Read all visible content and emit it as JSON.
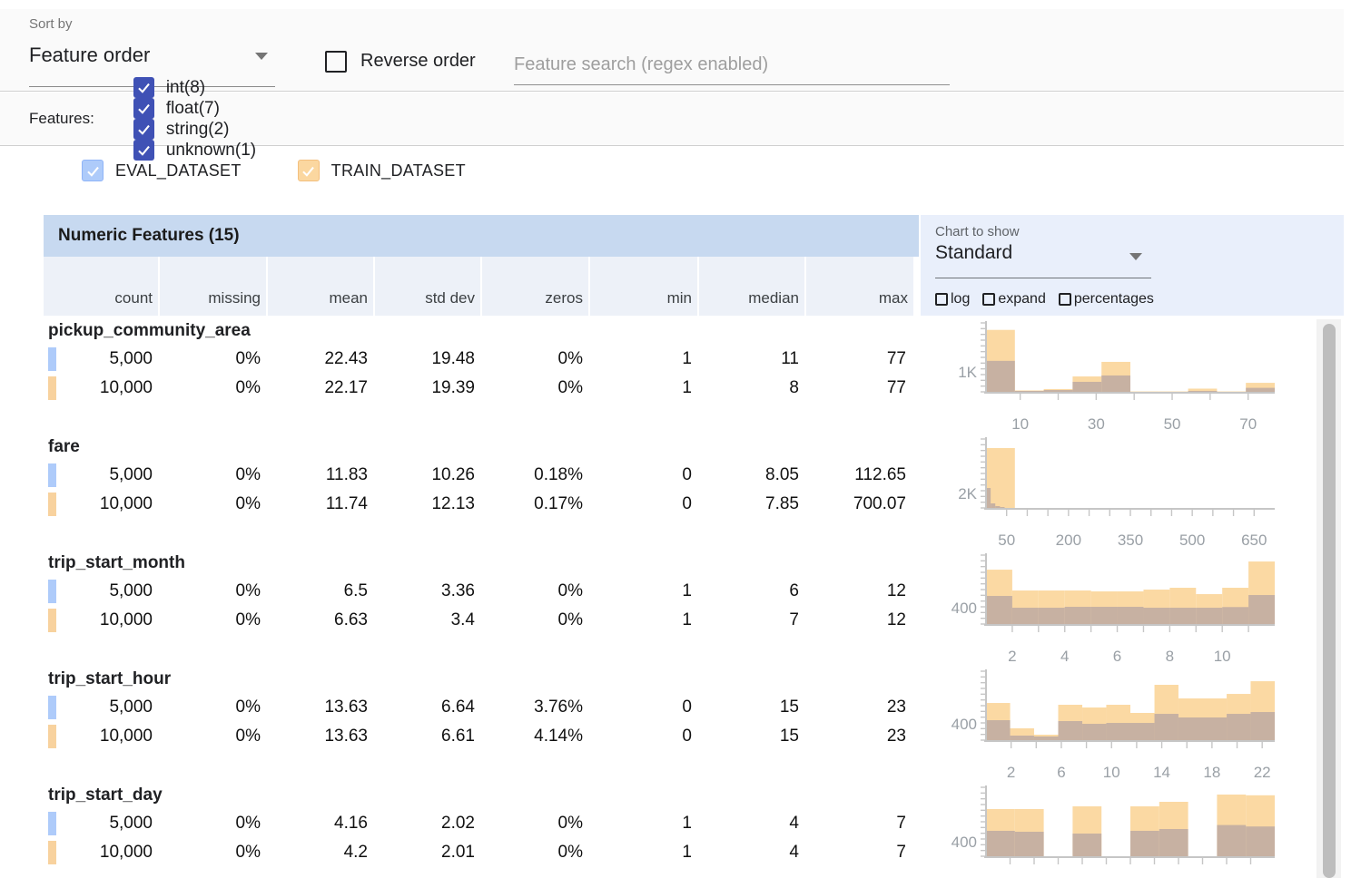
{
  "toolbar": {
    "sort_by_label": "Sort by",
    "sort_value": "Feature order",
    "reverse_label": "Reverse order",
    "search_placeholder": "Feature search (regex enabled)"
  },
  "filters": {
    "label": "Features:",
    "accent_color": "#3f51b5",
    "items": [
      {
        "label": "int(8)",
        "checked": true
      },
      {
        "label": "float(7)",
        "checked": true
      },
      {
        "label": "string(2)",
        "checked": true
      },
      {
        "label": "unknown(1)",
        "checked": true
      }
    ]
  },
  "legend": {
    "items": [
      {
        "label": "EVAL_DATASET",
        "color": "#aecbfa",
        "border": "#8fb4f8",
        "checked": true
      },
      {
        "label": "TRAIN_DATASET",
        "color": "#fbd7a0",
        "border": "#f3bf7d",
        "checked": true
      }
    ]
  },
  "table": {
    "title": "Numeric Features (15)",
    "columns": [
      "count",
      "missing",
      "mean",
      "std dev",
      "zeros",
      "min",
      "median",
      "max"
    ],
    "eval_chip_color": "#aecbfa",
    "train_chip_color": "#f8d29e",
    "features": [
      {
        "name": "pickup_community_area",
        "eval": [
          "5,000",
          "0%",
          "22.43",
          "19.48",
          "0%",
          "1",
          "11",
          "77"
        ],
        "train": [
          "10,000",
          "0%",
          "22.17",
          "19.39",
          "0%",
          "1",
          "8",
          "77"
        ]
      },
      {
        "name": "fare",
        "eval": [
          "5,000",
          "0%",
          "11.83",
          "10.26",
          "0.18%",
          "0",
          "8.05",
          "112.65"
        ],
        "train": [
          "10,000",
          "0%",
          "11.74",
          "12.13",
          "0.17%",
          "0",
          "7.85",
          "700.07"
        ]
      },
      {
        "name": "trip_start_month",
        "eval": [
          "5,000",
          "0%",
          "6.5",
          "3.36",
          "0%",
          "1",
          "6",
          "12"
        ],
        "train": [
          "10,000",
          "0%",
          "6.63",
          "3.4",
          "0%",
          "1",
          "7",
          "12"
        ]
      },
      {
        "name": "trip_start_hour",
        "eval": [
          "5,000",
          "0%",
          "13.63",
          "6.64",
          "3.76%",
          "0",
          "15",
          "23"
        ],
        "train": [
          "10,000",
          "0%",
          "13.63",
          "6.61",
          "4.14%",
          "0",
          "15",
          "23"
        ]
      },
      {
        "name": "trip_start_day",
        "eval": [
          "5,000",
          "0%",
          "4.16",
          "2.02",
          "0%",
          "1",
          "4",
          "7"
        ],
        "train": [
          "10,000",
          "0%",
          "4.2",
          "2.01",
          "0%",
          "1",
          "4",
          "7"
        ]
      }
    ]
  },
  "chart_panel": {
    "label": "Chart to show",
    "value": "Standard",
    "options": [
      "log",
      "expand",
      "percentages"
    ]
  },
  "chart_data": [
    {
      "type": "bar",
      "feature": "pickup_community_area",
      "x_range": [
        1,
        77
      ],
      "y_max": 3450,
      "y_label": {
        "text": "1K",
        "value": 1000
      },
      "x_minor_ticks": [
        10,
        20,
        30,
        40,
        50,
        60,
        70
      ],
      "x_tick_labels": [
        {
          "v": 10,
          "t": "10"
        },
        {
          "v": 30,
          "t": "30"
        },
        {
          "v": 50,
          "t": "50"
        },
        {
          "v": 70,
          "t": "70"
        }
      ],
      "series": [
        {
          "name": "TRAIN_DATASET",
          "color": "#fbd9a3",
          "bins": [
            {
              "x0": 1,
              "x1": 8.6,
              "c": 3100
            },
            {
              "x0": 8.6,
              "x1": 16.2,
              "c": 70
            },
            {
              "x0": 16.2,
              "x1": 23.8,
              "c": 140
            },
            {
              "x0": 23.8,
              "x1": 31.4,
              "c": 770
            },
            {
              "x0": 31.4,
              "x1": 39,
              "c": 1500
            },
            {
              "x0": 39,
              "x1": 46.6,
              "c": 20
            },
            {
              "x0": 46.6,
              "x1": 54.2,
              "c": 20
            },
            {
              "x0": 54.2,
              "x1": 61.8,
              "c": 160
            },
            {
              "x0": 61.8,
              "x1": 69.4,
              "c": 20
            },
            {
              "x0": 69.4,
              "x1": 77,
              "c": 450
            }
          ]
        },
        {
          "name": "EVAL_DATASET",
          "color": "#c7b1a2",
          "bins": [
            {
              "x0": 1,
              "x1": 8.6,
              "c": 1550
            },
            {
              "x0": 8.6,
              "x1": 16.2,
              "c": 45
            },
            {
              "x0": 16.2,
              "x1": 23.8,
              "c": 90
            },
            {
              "x0": 23.8,
              "x1": 31.4,
              "c": 500
            },
            {
              "x0": 31.4,
              "x1": 39,
              "c": 820
            },
            {
              "x0": 39,
              "x1": 46.6,
              "c": 0
            },
            {
              "x0": 46.6,
              "x1": 54.2,
              "c": 0
            },
            {
              "x0": 54.2,
              "x1": 61.8,
              "c": 45
            },
            {
              "x0": 61.8,
              "x1": 69.4,
              "c": 0
            },
            {
              "x0": 69.4,
              "x1": 77,
              "c": 200
            }
          ]
        }
      ]
    },
    {
      "type": "bar",
      "feature": "fare",
      "x_range": [
        0,
        700
      ],
      "y_max": 9500,
      "y_label": {
        "text": "2K",
        "value": 2000
      },
      "x_minor_ticks": [
        50,
        100,
        150,
        200,
        250,
        300,
        350,
        400,
        450,
        500,
        550,
        600,
        650
      ],
      "x_tick_labels": [
        {
          "v": 50,
          "t": "50"
        },
        {
          "v": 200,
          "t": "200"
        },
        {
          "v": 350,
          "t": "350"
        },
        {
          "v": 500,
          "t": "500"
        },
        {
          "v": 650,
          "t": "650"
        }
      ],
      "series": [
        {
          "name": "TRAIN_DATASET",
          "color": "#fbd9a3",
          "bins": [
            {
              "x0": 0,
              "x1": 70,
              "c": 8250
            }
          ]
        },
        {
          "name": "EVAL_DATASET",
          "color": "#c7b1a2",
          "bins": [
            {
              "x0": 0,
              "x1": 11.3,
              "c": 2750
            },
            {
              "x0": 11.3,
              "x1": 22.5,
              "c": 625
            },
            {
              "x0": 22.5,
              "x1": 33.8,
              "c": 250
            },
            {
              "x0": 33.8,
              "x1": 45.1,
              "c": 125
            }
          ]
        }
      ]
    },
    {
      "type": "bar",
      "feature": "trip_start_month",
      "x_range": [
        1,
        12
      ],
      "y_max": 1690,
      "y_label": {
        "text": "400",
        "value": 400
      },
      "x_minor_ticks": [
        2,
        3,
        4,
        5,
        6,
        7,
        8,
        9,
        10,
        11
      ],
      "x_tick_labels": [
        {
          "v": 2,
          "t": "2"
        },
        {
          "v": 4,
          "t": "4"
        },
        {
          "v": 6,
          "t": "6"
        },
        {
          "v": 8,
          "t": "8"
        },
        {
          "v": 10,
          "t": "10"
        }
      ],
      "series": [
        {
          "name": "TRAIN_DATASET",
          "color": "#fbd9a3",
          "bins": [
            {
              "x0": 1,
              "x1": 2,
              "c": 1333
            },
            {
              "x0": 2,
              "x1": 3,
              "c": 822
            },
            {
              "x0": 3,
              "x1": 4,
              "c": 822
            },
            {
              "x0": 4,
              "x1": 5,
              "c": 822
            },
            {
              "x0": 5,
              "x1": 6,
              "c": 800
            },
            {
              "x0": 6,
              "x1": 7,
              "c": 800
            },
            {
              "x0": 7,
              "x1": 8,
              "c": 844
            },
            {
              "x0": 8,
              "x1": 9,
              "c": 889
            },
            {
              "x0": 9,
              "x1": 10,
              "c": 733
            },
            {
              "x0": 10,
              "x1": 11,
              "c": 889
            },
            {
              "x0": 11,
              "x1": 12,
              "c": 1533
            }
          ]
        },
        {
          "name": "EVAL_DATASET",
          "color": "#c7b1a2",
          "bins": [
            {
              "x0": 1,
              "x1": 2,
              "c": 689
            },
            {
              "x0": 2,
              "x1": 3,
              "c": 400
            },
            {
              "x0": 3,
              "x1": 4,
              "c": 400
            },
            {
              "x0": 4,
              "x1": 5,
              "c": 422
            },
            {
              "x0": 5,
              "x1": 6,
              "c": 422
            },
            {
              "x0": 6,
              "x1": 7,
              "c": 422
            },
            {
              "x0": 7,
              "x1": 8,
              "c": 400
            },
            {
              "x0": 8,
              "x1": 9,
              "c": 400
            },
            {
              "x0": 9,
              "x1": 10,
              "c": 400
            },
            {
              "x0": 10,
              "x1": 11,
              "c": 416
            },
            {
              "x0": 11,
              "x1": 12,
              "c": 711
            }
          ]
        }
      ]
    },
    {
      "type": "bar",
      "feature": "trip_start_hour",
      "x_range": [
        0,
        23
      ],
      "y_max": 1690,
      "y_label": {
        "text": "400",
        "value": 400
      },
      "x_minor_ticks": [
        2,
        4,
        6,
        8,
        10,
        12,
        14,
        16,
        18,
        20,
        22
      ],
      "x_tick_labels": [
        {
          "v": 2,
          "t": "2"
        },
        {
          "v": 6,
          "t": "6"
        },
        {
          "v": 10,
          "t": "10"
        },
        {
          "v": 14,
          "t": "14"
        },
        {
          "v": 18,
          "t": "18"
        },
        {
          "v": 22,
          "t": "22"
        }
      ],
      "series": [
        {
          "name": "TRAIN_DATASET",
          "color": "#fbd9a3",
          "bins": [
            {
              "x0": 0,
              "x1": 1.92,
              "c": 911
            },
            {
              "x0": 1.92,
              "x1": 3.83,
              "c": 289
            },
            {
              "x0": 3.83,
              "x1": 5.75,
              "c": 133
            },
            {
              "x0": 5.75,
              "x1": 7.67,
              "c": 867
            },
            {
              "x0": 7.67,
              "x1": 9.58,
              "c": 800
            },
            {
              "x0": 9.58,
              "x1": 11.5,
              "c": 867
            },
            {
              "x0": 11.5,
              "x1": 13.42,
              "c": 667
            },
            {
              "x0": 13.42,
              "x1": 15.33,
              "c": 1356
            },
            {
              "x0": 15.33,
              "x1": 17.25,
              "c": 1022
            },
            {
              "x0": 17.25,
              "x1": 19.17,
              "c": 1022
            },
            {
              "x0": 19.17,
              "x1": 21.08,
              "c": 1133
            },
            {
              "x0": 21.08,
              "x1": 23,
              "c": 1444
            }
          ]
        },
        {
          "name": "EVAL_DATASET",
          "color": "#c7b1a2",
          "bins": [
            {
              "x0": 0,
              "x1": 1.92,
              "c": 489
            },
            {
              "x0": 1.92,
              "x1": 3.83,
              "c": 111
            },
            {
              "x0": 3.83,
              "x1": 5.75,
              "c": 89
            },
            {
              "x0": 5.75,
              "x1": 7.67,
              "c": 467
            },
            {
              "x0": 7.67,
              "x1": 9.58,
              "c": 400
            },
            {
              "x0": 9.58,
              "x1": 11.5,
              "c": 422
            },
            {
              "x0": 11.5,
              "x1": 13.42,
              "c": 422
            },
            {
              "x0": 13.42,
              "x1": 15.33,
              "c": 644
            },
            {
              "x0": 15.33,
              "x1": 17.25,
              "c": 556
            },
            {
              "x0": 17.25,
              "x1": 19.17,
              "c": 556
            },
            {
              "x0": 19.17,
              "x1": 21.08,
              "c": 644
            },
            {
              "x0": 21.08,
              "x1": 23,
              "c": 689
            }
          ]
        }
      ]
    },
    {
      "type": "bar",
      "feature": "trip_start_day",
      "x_range": [
        1,
        7
      ],
      "y_max": 1900,
      "y_label": {
        "text": "400",
        "value": 400
      },
      "x_minor_ticks": [
        1.5,
        2,
        2.5,
        3,
        3.5,
        4,
        4.5,
        5,
        5.5,
        6,
        6.5
      ],
      "x_tick_labels": [],
      "series": [
        {
          "name": "TRAIN_DATASET",
          "color": "#fbd9a3",
          "bins": [
            {
              "x0": 1,
              "x1": 1.6,
              "c": 1300
            },
            {
              "x0": 1.6,
              "x1": 2.2,
              "c": 1300
            },
            {
              "x0": 2.2,
              "x1": 2.8,
              "c": 0
            },
            {
              "x0": 2.8,
              "x1": 3.4,
              "c": 1375
            },
            {
              "x0": 3.4,
              "x1": 4,
              "c": 0
            },
            {
              "x0": 4,
              "x1": 4.6,
              "c": 1375
            },
            {
              "x0": 4.6,
              "x1": 5.2,
              "c": 1500
            },
            {
              "x0": 5.2,
              "x1": 5.8,
              "c": 0
            },
            {
              "x0": 5.8,
              "x1": 6.4,
              "c": 1700
            },
            {
              "x0": 6.4,
              "x1": 7,
              "c": 1680
            }
          ]
        },
        {
          "name": "EVAL_DATASET",
          "color": "#c7b1a2",
          "bins": [
            {
              "x0": 1,
              "x1": 1.6,
              "c": 700
            },
            {
              "x0": 1.6,
              "x1": 2.2,
              "c": 675
            },
            {
              "x0": 2.2,
              "x1": 2.8,
              "c": 0
            },
            {
              "x0": 2.8,
              "x1": 3.4,
              "c": 625
            },
            {
              "x0": 3.4,
              "x1": 4,
              "c": 0
            },
            {
              "x0": 4,
              "x1": 4.6,
              "c": 700
            },
            {
              "x0": 4.6,
              "x1": 5.2,
              "c": 750
            },
            {
              "x0": 5.2,
              "x1": 5.8,
              "c": 0
            },
            {
              "x0": 5.8,
              "x1": 6.4,
              "c": 860
            },
            {
              "x0": 6.4,
              "x1": 7,
              "c": 820
            }
          ]
        }
      ]
    }
  ]
}
